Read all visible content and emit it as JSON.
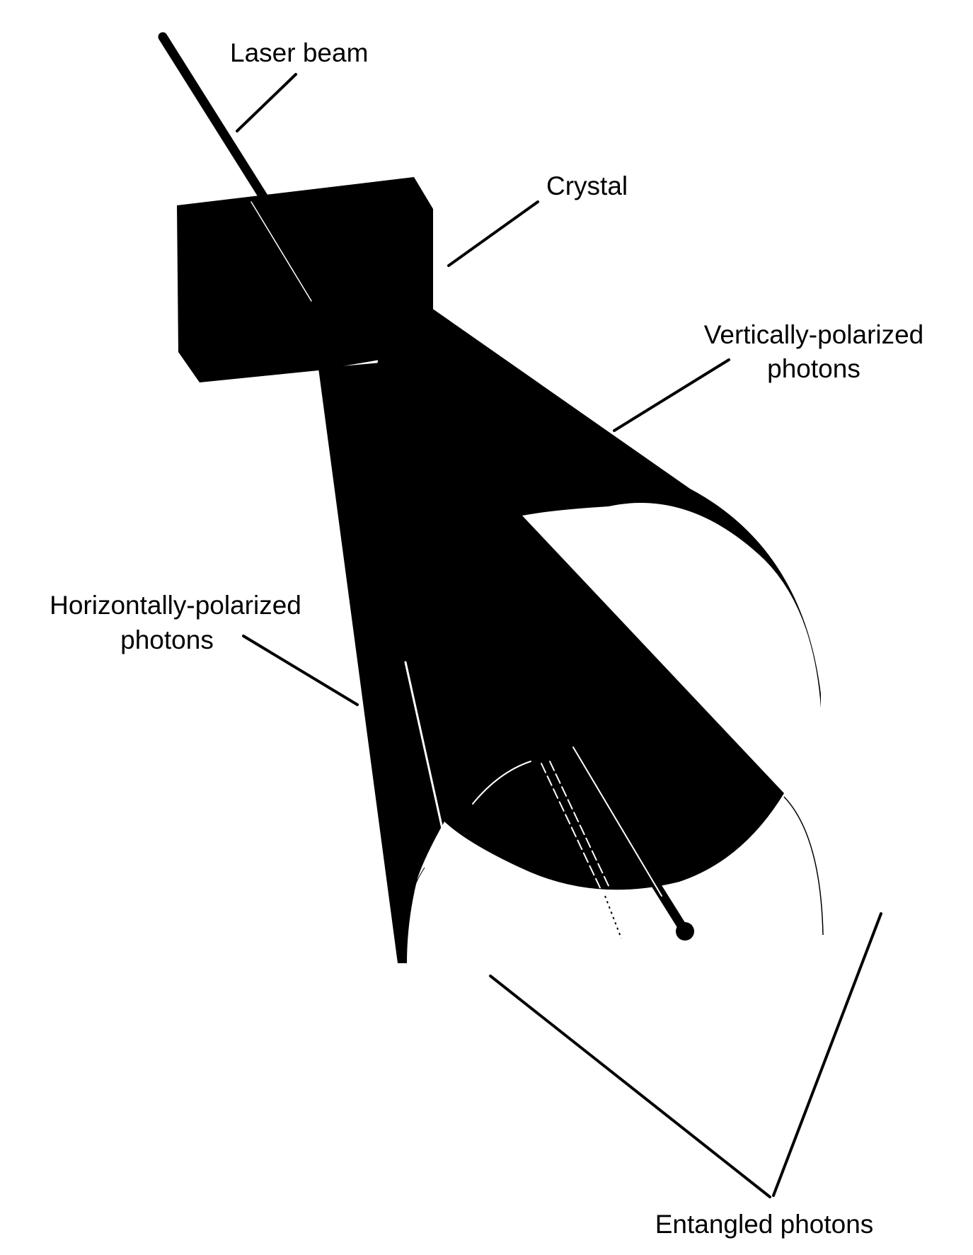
{
  "labels": {
    "laser_beam": "Laser beam",
    "crystal": "Crystal",
    "vertical_line1": "Vertically-polarized",
    "vertical_line2": "photons",
    "horizontal_line1": "Horizontally-polarized",
    "horizontal_line2": "photons",
    "entangled": "Entangled photons"
  },
  "colors": {
    "foreground": "#000000",
    "background": "#ffffff"
  }
}
